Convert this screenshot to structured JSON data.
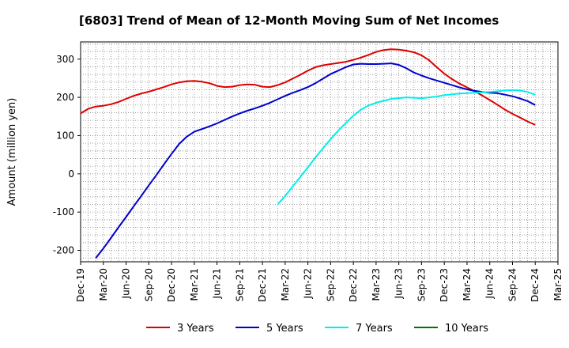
{
  "chart_data": {
    "type": "line",
    "title": "[6803]  Trend of Mean of 12-Month Moving Sum of Net Incomes",
    "ylabel": "Amount (million yen)",
    "xlabel": "",
    "ylim": [
      -230,
      345
    ],
    "yticks": [
      300,
      200,
      100,
      0,
      -100,
      -200
    ],
    "ytick_labels": [
      "300",
      "200",
      "100",
      "0",
      "-100",
      "-200"
    ],
    "xlim": [
      "2019-12",
      "2025-03"
    ],
    "xtick_labels": [
      "Dec-19",
      "Mar-20",
      "Jun-20",
      "Sep-20",
      "Dec-20",
      "Mar-21",
      "Jun-21",
      "Sep-21",
      "Dec-21",
      "Mar-22",
      "Jun-22",
      "Sep-22",
      "Dec-22",
      "Mar-23",
      "Jun-23",
      "Sep-23",
      "Dec-23",
      "Mar-24",
      "Jun-24",
      "Sep-24",
      "Dec-24",
      "Mar-25"
    ],
    "grid": true,
    "legend_position": "bottom",
    "series": [
      {
        "name": "3 Years",
        "color": "#dd0000",
        "points": [
          [
            "2019-12",
            158
          ],
          [
            "2020-01",
            170
          ],
          [
            "2020-02",
            176
          ],
          [
            "2020-03",
            178
          ],
          [
            "2020-04",
            182
          ],
          [
            "2020-05",
            188
          ],
          [
            "2020-06",
            196
          ],
          [
            "2020-07",
            204
          ],
          [
            "2020-08",
            210
          ],
          [
            "2020-09",
            215
          ],
          [
            "2020-10",
            221
          ],
          [
            "2020-11",
            227
          ],
          [
            "2020-12",
            234
          ],
          [
            "2021-01",
            239
          ],
          [
            "2021-02",
            242
          ],
          [
            "2021-03",
            243
          ],
          [
            "2021-04",
            241
          ],
          [
            "2021-05",
            237
          ],
          [
            "2021-06",
            230
          ],
          [
            "2021-07",
            227
          ],
          [
            "2021-08",
            228
          ],
          [
            "2021-09",
            232
          ],
          [
            "2021-10",
            234
          ],
          [
            "2021-11",
            233
          ],
          [
            "2021-12",
            228
          ],
          [
            "2022-01",
            227
          ],
          [
            "2022-02",
            232
          ],
          [
            "2022-03",
            239
          ],
          [
            "2022-04",
            249
          ],
          [
            "2022-05",
            259
          ],
          [
            "2022-06",
            270
          ],
          [
            "2022-07",
            279
          ],
          [
            "2022-08",
            284
          ],
          [
            "2022-09",
            287
          ],
          [
            "2022-10",
            290
          ],
          [
            "2022-11",
            293
          ],
          [
            "2022-12",
            298
          ],
          [
            "2023-01",
            304
          ],
          [
            "2023-02",
            311
          ],
          [
            "2023-03",
            319
          ],
          [
            "2023-04",
            324
          ],
          [
            "2023-05",
            326
          ],
          [
            "2023-06",
            325
          ],
          [
            "2023-07",
            322
          ],
          [
            "2023-08",
            318
          ],
          [
            "2023-09",
            310
          ],
          [
            "2023-10",
            297
          ],
          [
            "2023-11",
            279
          ],
          [
            "2023-12",
            262
          ],
          [
            "2024-01",
            248
          ],
          [
            "2024-02",
            236
          ],
          [
            "2024-03",
            226
          ],
          [
            "2024-04",
            216
          ],
          [
            "2024-05",
            205
          ],
          [
            "2024-06",
            193
          ],
          [
            "2024-07",
            181
          ],
          [
            "2024-08",
            168
          ],
          [
            "2024-09",
            157
          ],
          [
            "2024-10",
            147
          ],
          [
            "2024-11",
            137
          ],
          [
            "2024-12",
            128
          ]
        ]
      },
      {
        "name": "5 Years",
        "color": "#0000cc",
        "points": [
          [
            "2020-02",
            -220
          ],
          [
            "2020-03",
            -195
          ],
          [
            "2020-04",
            -168
          ],
          [
            "2020-05",
            -140
          ],
          [
            "2020-06",
            -113
          ],
          [
            "2020-07",
            -85
          ],
          [
            "2020-08",
            -58
          ],
          [
            "2020-09",
            -30
          ],
          [
            "2020-10",
            -3
          ],
          [
            "2020-11",
            25
          ],
          [
            "2020-12",
            52
          ],
          [
            "2021-01",
            78
          ],
          [
            "2021-02",
            97
          ],
          [
            "2021-03",
            110
          ],
          [
            "2021-04",
            117
          ],
          [
            "2021-05",
            124
          ],
          [
            "2021-06",
            132
          ],
          [
            "2021-07",
            141
          ],
          [
            "2021-08",
            150
          ],
          [
            "2021-09",
            158
          ],
          [
            "2021-10",
            165
          ],
          [
            "2021-11",
            171
          ],
          [
            "2021-12",
            178
          ],
          [
            "2022-01",
            186
          ],
          [
            "2022-02",
            195
          ],
          [
            "2022-03",
            204
          ],
          [
            "2022-04",
            212
          ],
          [
            "2022-05",
            219
          ],
          [
            "2022-06",
            227
          ],
          [
            "2022-07",
            237
          ],
          [
            "2022-08",
            249
          ],
          [
            "2022-09",
            261
          ],
          [
            "2022-10",
            270
          ],
          [
            "2022-11",
            279
          ],
          [
            "2022-12",
            286
          ],
          [
            "2023-01",
            288
          ],
          [
            "2023-02",
            287
          ],
          [
            "2023-03",
            287
          ],
          [
            "2023-04",
            288
          ],
          [
            "2023-05",
            289
          ],
          [
            "2023-06",
            285
          ],
          [
            "2023-07",
            276
          ],
          [
            "2023-08",
            265
          ],
          [
            "2023-09",
            257
          ],
          [
            "2023-10",
            250
          ],
          [
            "2023-11",
            244
          ],
          [
            "2023-12",
            238
          ],
          [
            "2024-01",
            232
          ],
          [
            "2024-02",
            226
          ],
          [
            "2024-03",
            221
          ],
          [
            "2024-04",
            217
          ],
          [
            "2024-05",
            214
          ],
          [
            "2024-06",
            212
          ],
          [
            "2024-07",
            211
          ],
          [
            "2024-08",
            207
          ],
          [
            "2024-09",
            203
          ],
          [
            "2024-10",
            197
          ],
          [
            "2024-11",
            190
          ],
          [
            "2024-12",
            180
          ]
        ]
      },
      {
        "name": "7 Years",
        "color": "#00eeee",
        "points": [
          [
            "2022-02",
            -80
          ],
          [
            "2022-03",
            -58
          ],
          [
            "2022-04",
            -33
          ],
          [
            "2022-05",
            -8
          ],
          [
            "2022-06",
            17
          ],
          [
            "2022-07",
            43
          ],
          [
            "2022-08",
            67
          ],
          [
            "2022-09",
            91
          ],
          [
            "2022-10",
            113
          ],
          [
            "2022-11",
            133
          ],
          [
            "2022-12",
            152
          ],
          [
            "2023-01",
            168
          ],
          [
            "2023-02",
            179
          ],
          [
            "2023-03",
            186
          ],
          [
            "2023-04",
            191
          ],
          [
            "2023-05",
            196
          ],
          [
            "2023-06",
            198
          ],
          [
            "2023-07",
            200
          ],
          [
            "2023-08",
            199
          ],
          [
            "2023-09",
            198
          ],
          [
            "2023-10",
            200
          ],
          [
            "2023-11",
            202
          ],
          [
            "2023-12",
            206
          ],
          [
            "2024-01",
            208
          ],
          [
            "2024-02",
            210
          ],
          [
            "2024-03",
            211
          ],
          [
            "2024-04",
            212
          ],
          [
            "2024-05",
            213
          ],
          [
            "2024-06",
            214
          ],
          [
            "2024-07",
            216
          ],
          [
            "2024-08",
            218
          ],
          [
            "2024-09",
            219
          ],
          [
            "2024-10",
            218
          ],
          [
            "2024-11",
            214
          ],
          [
            "2024-12",
            207
          ]
        ]
      },
      {
        "name": "10 Years",
        "color": "#007700",
        "points": []
      }
    ]
  }
}
